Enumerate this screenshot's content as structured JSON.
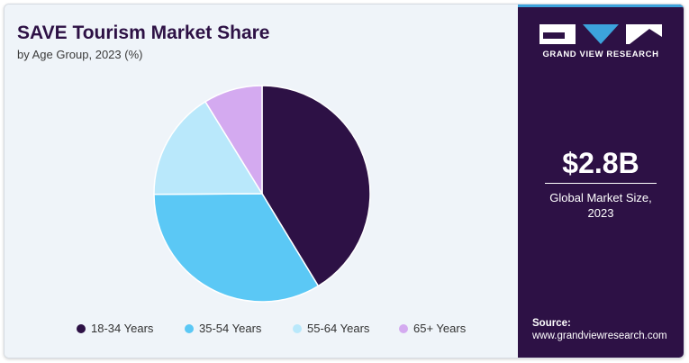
{
  "chart_data": {
    "type": "pie",
    "title": "SAVE Tourism Market Share",
    "subtitle": "by Age Group, 2023 (%)",
    "categories": [
      "18-34 Years",
      "35-54 Years",
      "55-64 Years",
      "65+ Years"
    ],
    "values": [
      41.3,
      33.6,
      16.3,
      8.8
    ],
    "colors": [
      "#2d1145",
      "#5bc8f5",
      "#b9e8fb",
      "#d4aaf0"
    ],
    "legend_position": "bottom"
  },
  "sidebar": {
    "brand_name": "GRAND VIEW RESEARCH",
    "market_value": "$2.8B",
    "market_label_line1": "Global Market Size,",
    "market_label_line2": "2023",
    "source_label": "Source:",
    "source_url": "www.grandviewresearch.com",
    "background_color": "#2d1145",
    "accent_color": "#3ca3dc"
  }
}
